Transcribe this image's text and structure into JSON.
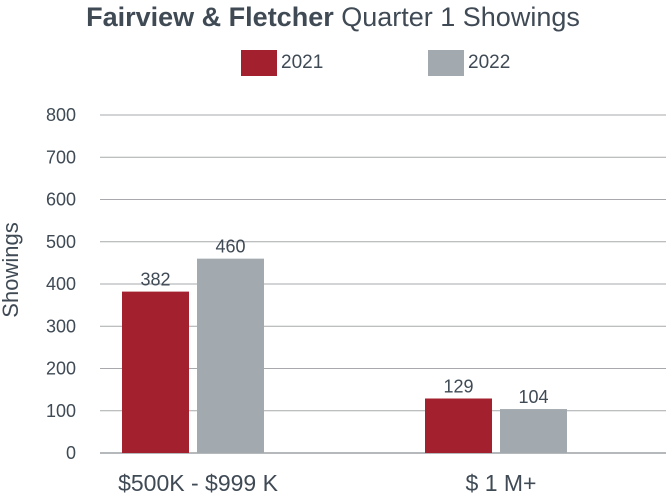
{
  "title": {
    "bold": "Fairview & Fletcher",
    "rest": "Quarter 1 Showings"
  },
  "colors": {
    "series_2021": "#a3212f",
    "series_2022": "#a2aab0",
    "grid": "#a7a9ac",
    "text": "#3f4a55"
  },
  "chart_data": {
    "type": "bar",
    "title": "Fairview & Fletcher Quarter 1 Showings",
    "xlabel": "",
    "ylabel": "Showings",
    "categories": [
      "$500K - $999 K",
      "$ 1 M+"
    ],
    "series": [
      {
        "name": "2021",
        "values": [
          382,
          129
        ]
      },
      {
        "name": "2022",
        "values": [
          460,
          104
        ]
      }
    ],
    "ylim": [
      0,
      800
    ],
    "yticks": [
      0,
      100,
      200,
      300,
      400,
      500,
      600,
      700,
      800
    ],
    "grid": true,
    "legend": "top-center",
    "data_labels": true
  }
}
